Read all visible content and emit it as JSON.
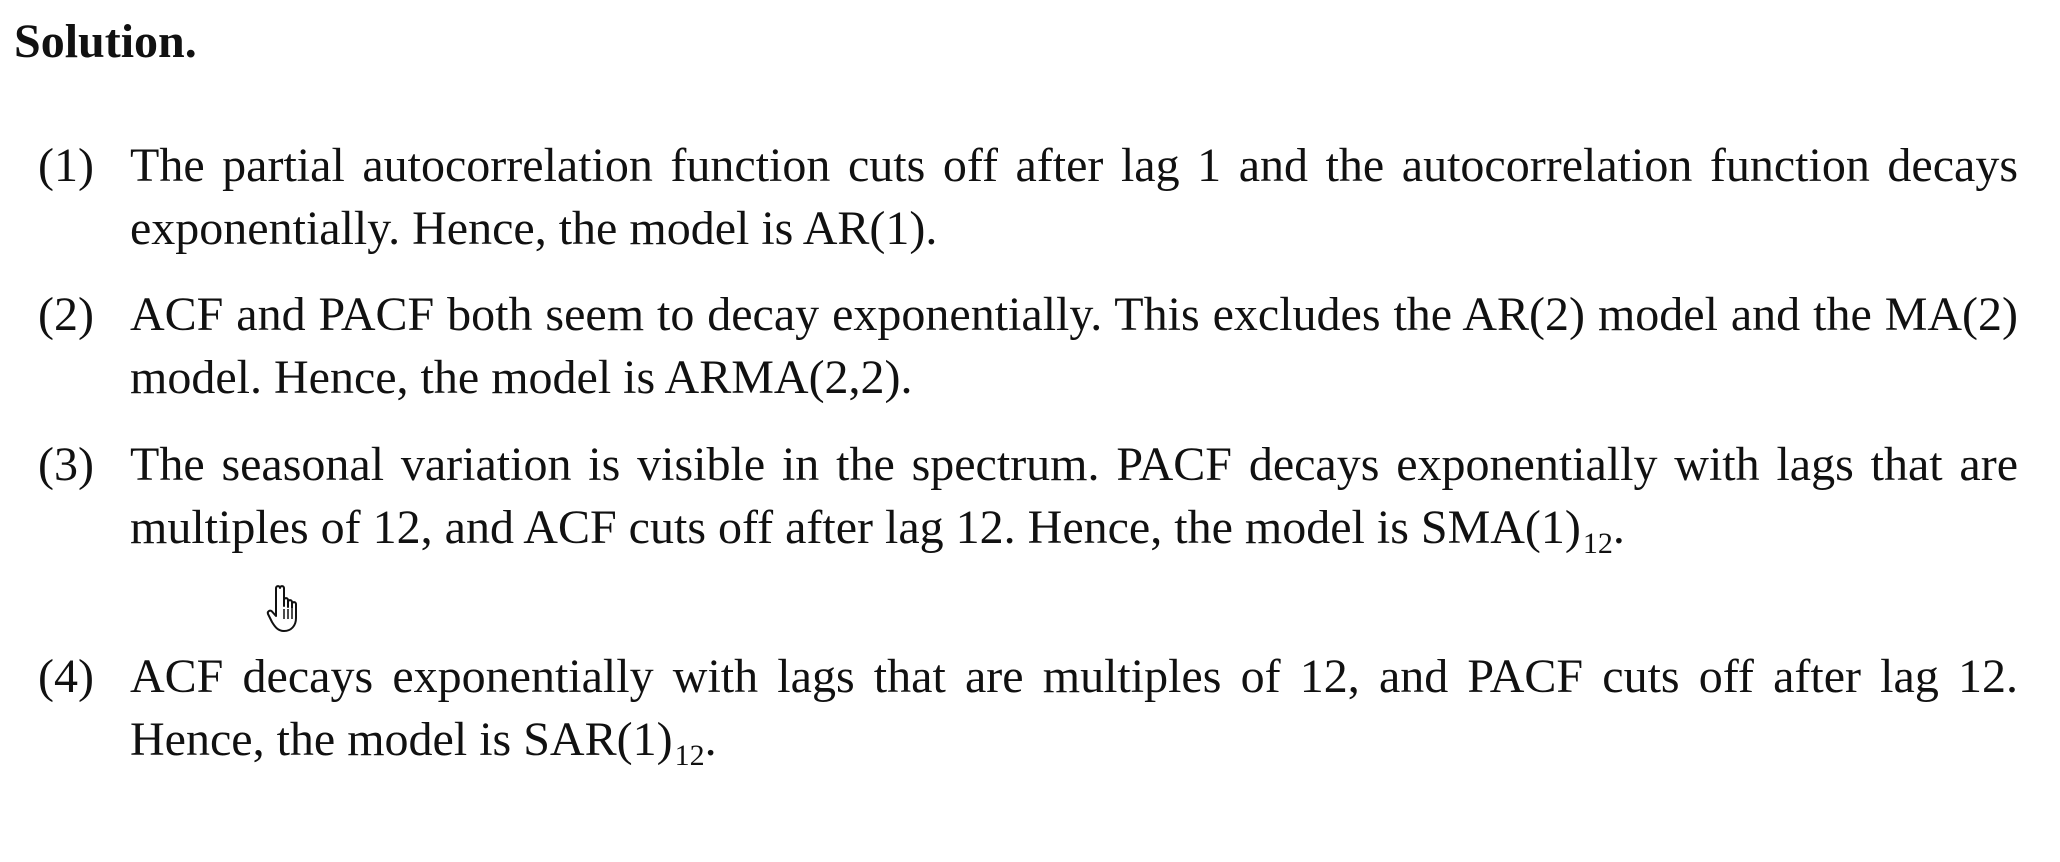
{
  "heading": "Solution.",
  "items": [
    {
      "num": "(1)",
      "text": "The partial autocorrelation function cuts off after lag 1 and the autocorrelation function decays exponentially. Hence, the model is AR(1)."
    },
    {
      "num": "(2)",
      "text": "ACF and PACF both seem to decay exponentially. This excludes the AR(2) model and the MA(2) model. Hence, the model is ARMA(2,2)."
    },
    {
      "num": "(3)",
      "text": "The seasonal variation is visible in the spectrum. PACF decays exponentially with lags that are multiples of 12, and ACF cuts off after lag 12. Hence, the model is SMA(1)",
      "subscript": "12",
      "end": "."
    },
    {
      "num": "(4)",
      "text": "ACF decays exponentially with lags that are multiples of 12, and PACF cuts off after lag 12. Hence, the model is SAR(1)",
      "subscript": "12",
      "end": "."
    }
  ],
  "cursor_icon": "hand-pointer-icon"
}
